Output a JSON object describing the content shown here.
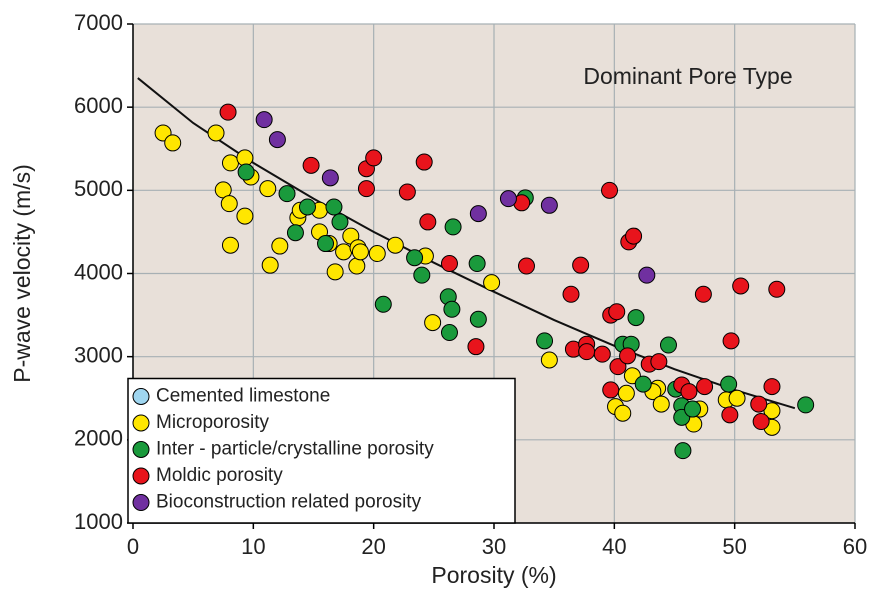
{
  "chart_data": {
    "type": "scatter",
    "annotation": "Dominant Pore Type",
    "x_label": "Porosity (%)",
    "y_label": "P-wave velocity (m/s)",
    "xlim": [
      0,
      60
    ],
    "xticks": [
      0,
      10,
      20,
      30,
      40,
      50,
      60
    ],
    "ylim": [
      1000,
      7000
    ],
    "yticks": [
      1000,
      2000,
      3000,
      4000,
      5000,
      6000,
      7000
    ],
    "grid": true,
    "legend": "lower left",
    "series": [
      {
        "name": "Cemented limestone",
        "color": "#9fd6f0",
        "x": [],
        "values": []
      },
      {
        "name": "Microporosity",
        "color": "#ffe600",
        "x": [
          2.5,
          3.3,
          6.9,
          7.5,
          8.1,
          9.3,
          8.0,
          8.1,
          9.3,
          9.8,
          11.2,
          12.2,
          11.4,
          13.7,
          13.9,
          15.5,
          15.5,
          16.3,
          16.8,
          17.5,
          18.1,
          18.7,
          18.6,
          18.9,
          20.3,
          21.8,
          24.3,
          24.9,
          29.8,
          34.6,
          43.6,
          40.1,
          40.7,
          41.0,
          41.5,
          43.2,
          43.9,
          46.6,
          47.1,
          49.3,
          50.2,
          53.1,
          53.1
        ],
        "values": [
          5690,
          5570,
          5690,
          5005,
          5330,
          5390,
          4840,
          4340,
          4690,
          5160,
          5020,
          4330,
          4100,
          4670,
          4760,
          4760,
          4500,
          4360,
          4020,
          4260,
          4450,
          4310,
          4090,
          4260,
          4240,
          4340,
          4210,
          3410,
          3890,
          2960,
          2620,
          2400,
          2320,
          2560,
          2770,
          2580,
          2430,
          2190,
          2370,
          2480,
          2500,
          2350,
          2150
        ]
      },
      {
        "name": "Inter - particle/crystalline porosity",
        "color": "#1a9a3c",
        "x": [
          9.4,
          12.8,
          13.5,
          14.5,
          16.0,
          16.7,
          17.2,
          20.8,
          23.4,
          24.0,
          26.6,
          26.2,
          26.5,
          26.3,
          28.6,
          28.7,
          32.6,
          34.2,
          40.7,
          41.4,
          41.8,
          42.4,
          44.5,
          45.1,
          45.6,
          45.6,
          45.7,
          46.5,
          49.5,
          55.9
        ],
        "values": [
          5220,
          4960,
          4490,
          4800,
          4360,
          4800,
          4620,
          3630,
          4190,
          3980,
          4560,
          3720,
          3570,
          3290,
          4120,
          3450,
          4910,
          3190,
          3150,
          3150,
          3470,
          2670,
          3140,
          2610,
          2410,
          2270,
          1870,
          2370,
          2670,
          2420
        ]
      },
      {
        "name": "Moldic porosity",
        "color": "#e8141c",
        "x": [
          7.9,
          14.8,
          19.4,
          20.0,
          19.4,
          22.8,
          24.2,
          24.5,
          26.3,
          28.5,
          32.3,
          32.7,
          36.4,
          37.2,
          36.6,
          37.7,
          37.7,
          39.6,
          39.0,
          39.7,
          40.2,
          40.3,
          41.1,
          41.2,
          41.6,
          39.7,
          42.9,
          43.7,
          45.6,
          46.2,
          47.5,
          47.4,
          49.7,
          50.5,
          49.6,
          52.0,
          52.2,
          53.1,
          53.5
        ],
        "values": [
          5940,
          5300,
          5260,
          5390,
          5020,
          4980,
          5340,
          4620,
          4120,
          3120,
          4850,
          4090,
          3750,
          4100,
          3090,
          3150,
          3060,
          5000,
          3030,
          3500,
          3540,
          2880,
          3010,
          4380,
          4450,
          2600,
          2910,
          2940,
          2660,
          2580,
          2640,
          3750,
          3190,
          3850,
          2300,
          2430,
          2220,
          2640,
          3810
        ]
      },
      {
        "name": "Bioconstruction related porosity",
        "color": "#7030a0",
        "x": [
          10.9,
          12.0,
          16.4,
          28.7,
          31.2,
          34.6,
          42.7
        ],
        "values": [
          5850,
          5610,
          5150,
          4720,
          4900,
          4820,
          3980
        ]
      }
    ],
    "fit": {
      "color": "#111111",
      "x": [
        0.4,
        5,
        10,
        15,
        20,
        25,
        30,
        35,
        40,
        45,
        50,
        55
      ],
      "values": [
        6350,
        5810,
        5330,
        4900,
        4500,
        4130,
        3780,
        3440,
        3130,
        2850,
        2600,
        2380
      ]
    }
  }
}
